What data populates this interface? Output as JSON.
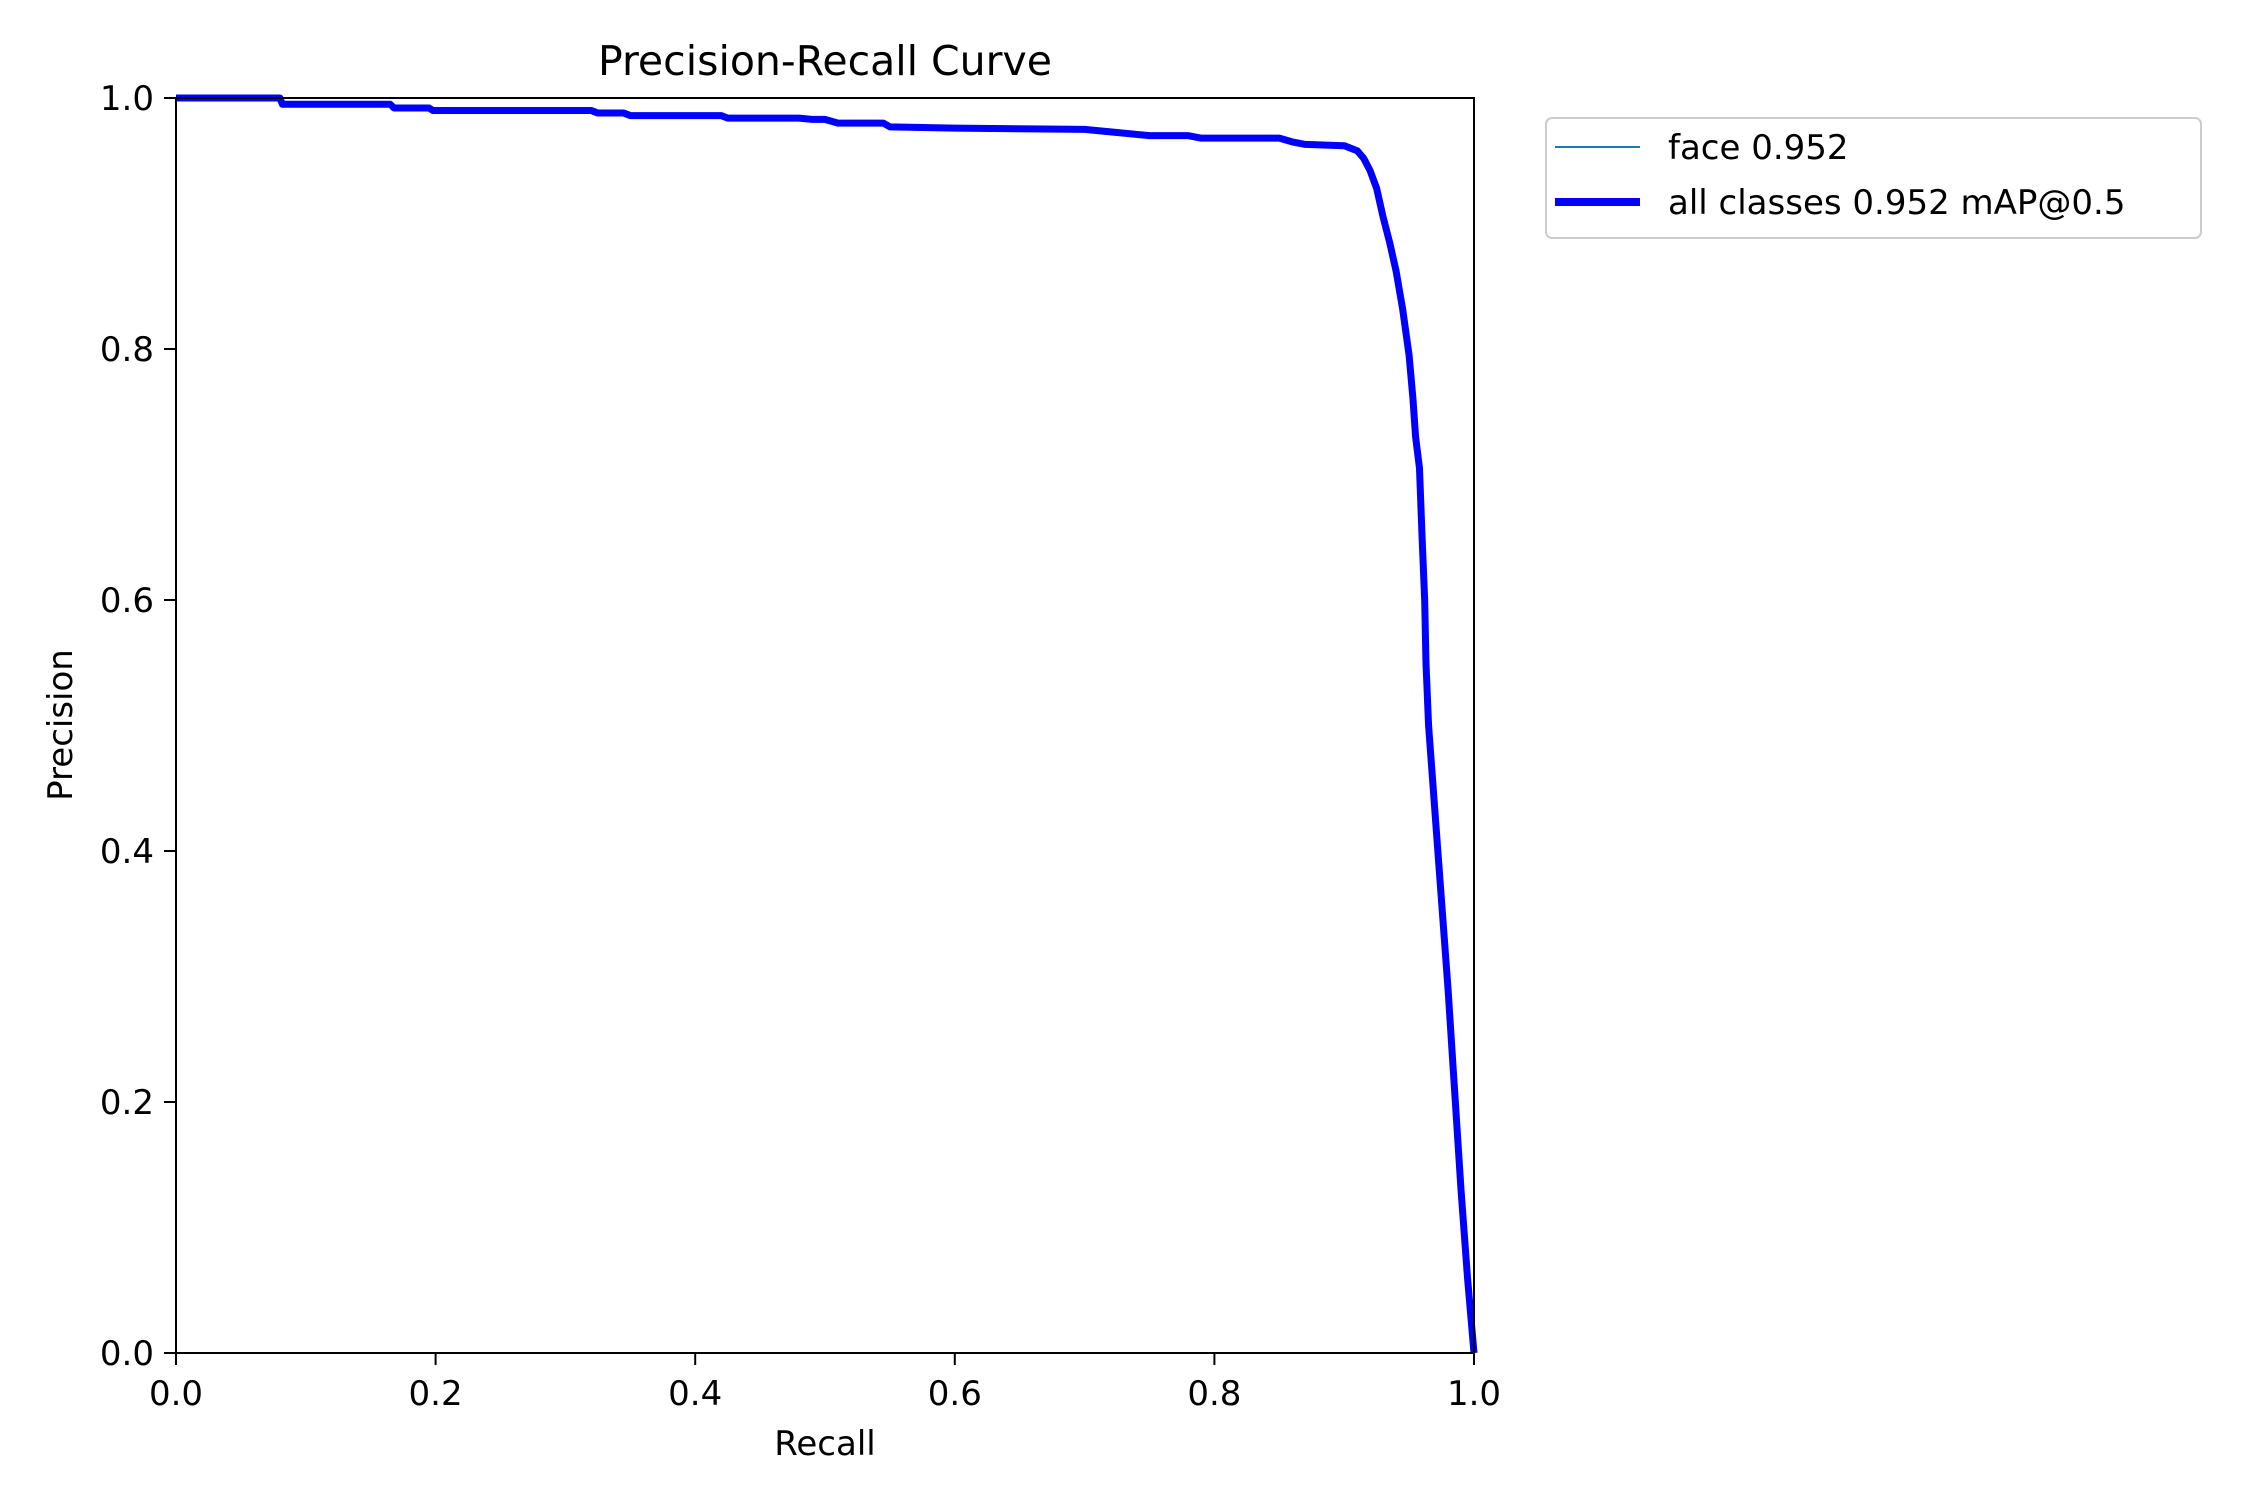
{
  "chart_data": {
    "type": "line",
    "title": "Precision-Recall Curve",
    "xlabel": "Recall",
    "ylabel": "Precision",
    "xlim": [
      0,
      1
    ],
    "ylim": [
      0,
      1
    ],
    "xticks": [
      "0.0",
      "0.2",
      "0.4",
      "0.6",
      "0.8",
      "1.0"
    ],
    "yticks": [
      "0.0",
      "0.2",
      "0.4",
      "0.6",
      "0.8",
      "1.0"
    ],
    "grid": false,
    "legend_position": "outside-upper-right",
    "series": [
      {
        "name": "face 0.952",
        "color": "#1f77b4",
        "style": "thin",
        "x": [
          0.0,
          0.08,
          0.082,
          0.165,
          0.168,
          0.195,
          0.198,
          0.32,
          0.325,
          0.345,
          0.35,
          0.42,
          0.425,
          0.48,
          0.49,
          0.5,
          0.51,
          0.545,
          0.55,
          0.6,
          0.7,
          0.72,
          0.75,
          0.78,
          0.79,
          0.85,
          0.86,
          0.87,
          0.9,
          0.91,
          0.915,
          0.92,
          0.925,
          0.93,
          0.935,
          0.94,
          0.945,
          0.95,
          0.953,
          0.955,
          0.958,
          0.96,
          0.962,
          0.963,
          0.965,
          0.97,
          0.975,
          0.98,
          0.985,
          0.99,
          0.995,
          1.0
        ],
        "y": [
          1.0,
          1.0,
          0.995,
          0.995,
          0.992,
          0.992,
          0.99,
          0.99,
          0.988,
          0.988,
          0.986,
          0.986,
          0.984,
          0.984,
          0.983,
          0.983,
          0.98,
          0.98,
          0.977,
          0.976,
          0.975,
          0.973,
          0.97,
          0.97,
          0.968,
          0.968,
          0.965,
          0.963,
          0.962,
          0.958,
          0.952,
          0.942,
          0.928,
          0.905,
          0.885,
          0.862,
          0.832,
          0.795,
          0.76,
          0.73,
          0.705,
          0.65,
          0.6,
          0.55,
          0.5,
          0.43,
          0.36,
          0.29,
          0.21,
          0.13,
          0.06,
          0.0
        ]
      },
      {
        "name": "all classes 0.952 mAP@0.5",
        "color": "#0000ff",
        "style": "thick",
        "x": [
          0.0,
          0.08,
          0.082,
          0.165,
          0.168,
          0.195,
          0.198,
          0.32,
          0.325,
          0.345,
          0.35,
          0.42,
          0.425,
          0.48,
          0.49,
          0.5,
          0.51,
          0.545,
          0.55,
          0.6,
          0.7,
          0.72,
          0.75,
          0.78,
          0.79,
          0.85,
          0.86,
          0.87,
          0.9,
          0.91,
          0.915,
          0.92,
          0.925,
          0.93,
          0.935,
          0.94,
          0.945,
          0.95,
          0.953,
          0.955,
          0.958,
          0.96,
          0.962,
          0.963,
          0.965,
          0.97,
          0.975,
          0.98,
          0.985,
          0.99,
          0.995,
          1.0
        ],
        "y": [
          1.0,
          1.0,
          0.995,
          0.995,
          0.992,
          0.992,
          0.99,
          0.99,
          0.988,
          0.988,
          0.986,
          0.986,
          0.984,
          0.984,
          0.983,
          0.983,
          0.98,
          0.98,
          0.977,
          0.976,
          0.975,
          0.973,
          0.97,
          0.97,
          0.968,
          0.968,
          0.965,
          0.963,
          0.962,
          0.958,
          0.952,
          0.942,
          0.928,
          0.905,
          0.885,
          0.862,
          0.832,
          0.795,
          0.76,
          0.73,
          0.705,
          0.65,
          0.6,
          0.55,
          0.5,
          0.43,
          0.36,
          0.29,
          0.21,
          0.13,
          0.06,
          0.0
        ]
      }
    ]
  }
}
